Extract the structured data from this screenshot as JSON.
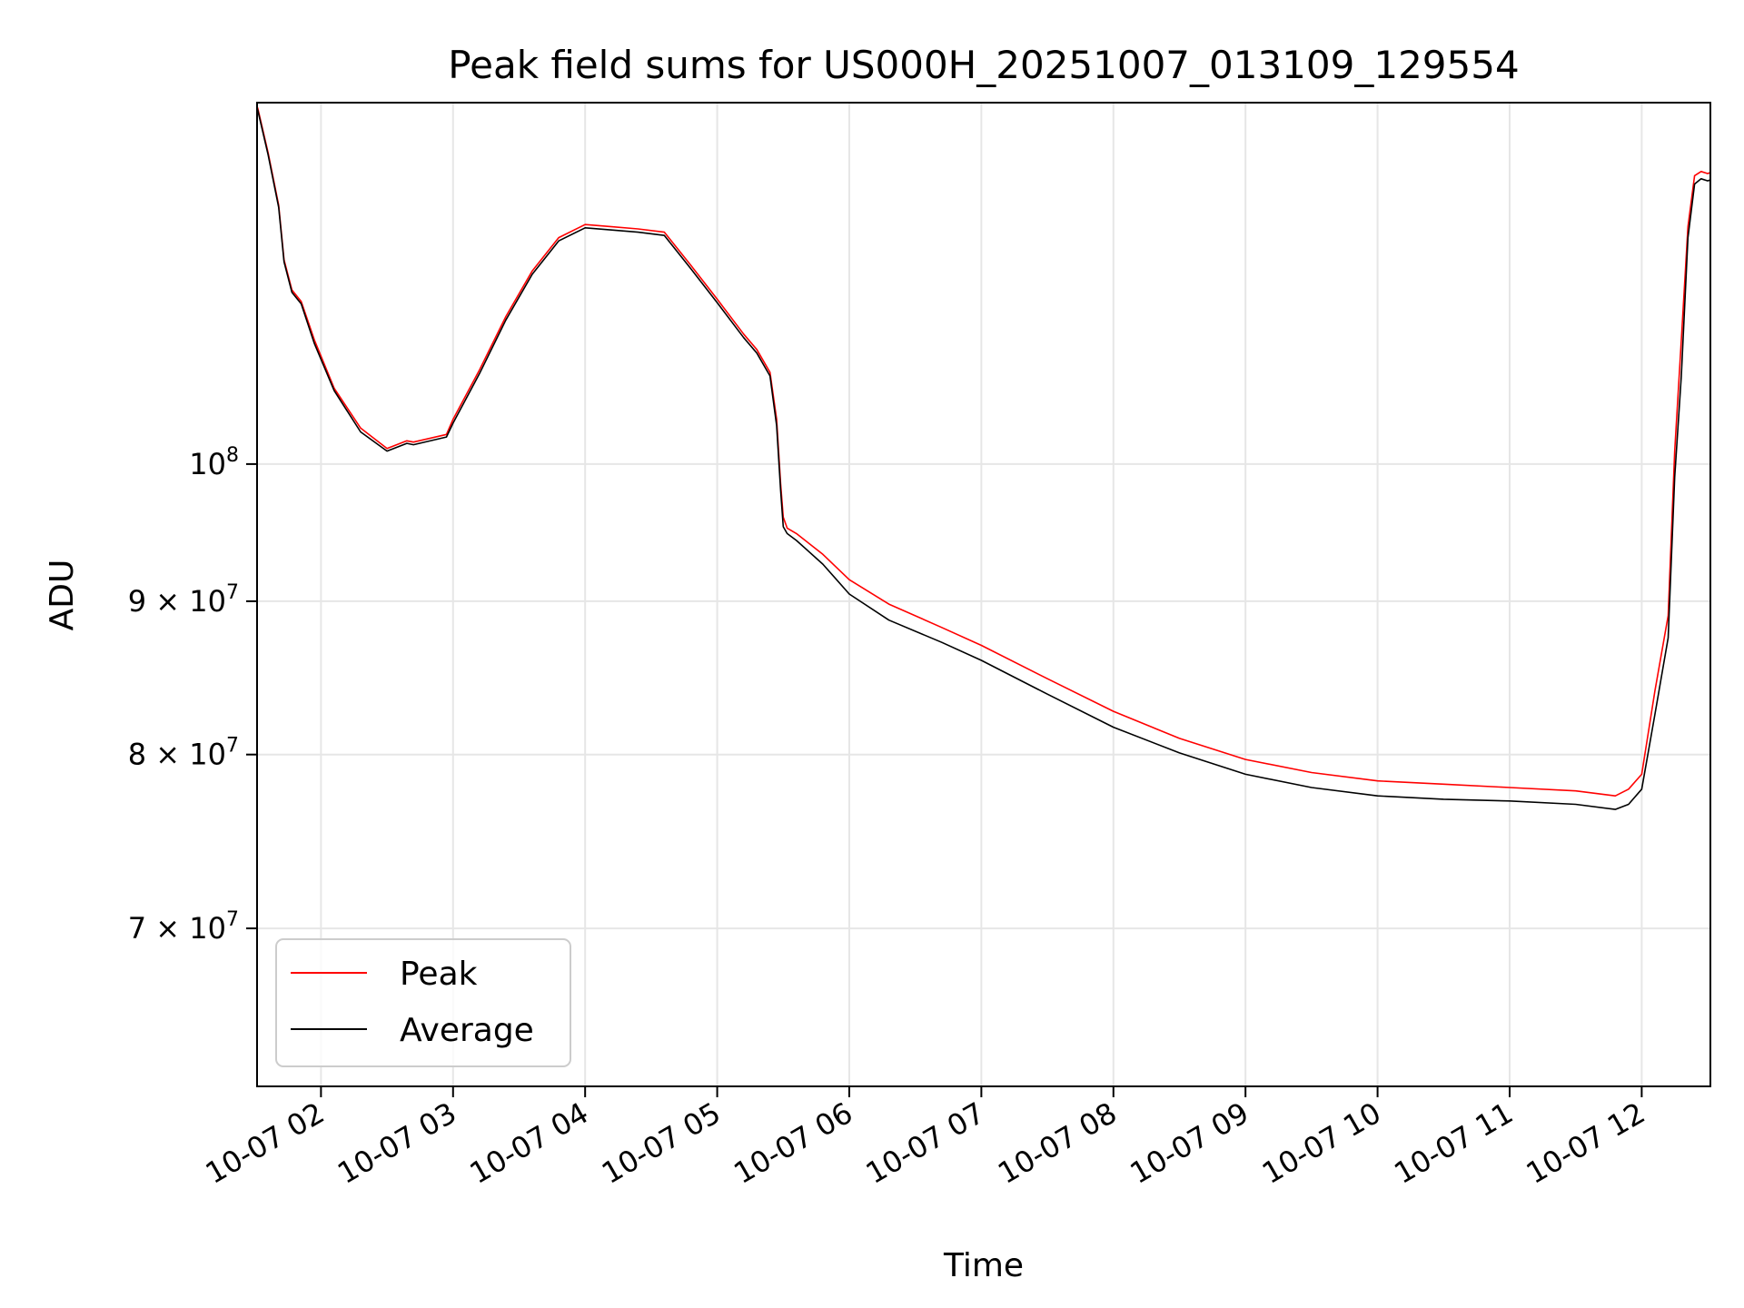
{
  "chart_data": {
    "type": "line",
    "title": "Peak field sums for US000H_20251007_013109_129554",
    "xlabel": "Time",
    "ylabel": "ADU",
    "x_unit": "hours since 10-07 00:00",
    "xlim": [
      1.516,
      12.52
    ],
    "ylim": [
      62000000,
      132000000
    ],
    "y_scale": "log",
    "grid": true,
    "legend_position": "lower-left",
    "colors": {
      "Peak": "#ff0000",
      "Average": "#000000"
    },
    "x_ticks": [
      {
        "value": 2,
        "label": "10-07 02"
      },
      {
        "value": 3,
        "label": "10-07 03"
      },
      {
        "value": 4,
        "label": "10-07 04"
      },
      {
        "value": 5,
        "label": "10-07 05"
      },
      {
        "value": 6,
        "label": "10-07 06"
      },
      {
        "value": 7,
        "label": "10-07 07"
      },
      {
        "value": 8,
        "label": "10-07 08"
      },
      {
        "value": 9,
        "label": "10-07 09"
      },
      {
        "value": 10,
        "label": "10-07 10"
      },
      {
        "value": 11,
        "label": "10-07 11"
      },
      {
        "value": 12,
        "label": "10-07 12"
      }
    ],
    "y_ticks": [
      {
        "value": 70000000,
        "mantissa": "7",
        "label": "7 × 10^7"
      },
      {
        "value": 80000000,
        "mantissa": "8",
        "label": "8 × 10^7"
      },
      {
        "value": 90000000,
        "mantissa": "9",
        "label": "9 × 10^7"
      },
      {
        "value": 100000000,
        "mantissa": "",
        "label": "10^8"
      }
    ],
    "series": [
      {
        "name": "Peak",
        "x": [
          1.52,
          1.6,
          1.68,
          1.72,
          1.78,
          1.85,
          1.95,
          2.1,
          2.3,
          2.5,
          2.65,
          2.7,
          2.95,
          3.0,
          3.2,
          3.4,
          3.6,
          3.8,
          4.0,
          4.2,
          4.4,
          4.6,
          4.8,
          5.0,
          5.2,
          5.3,
          5.4,
          5.45,
          5.48,
          5.5,
          5.53,
          5.6,
          5.8,
          6.0,
          6.3,
          6.7,
          7.0,
          7.5,
          8.0,
          8.5,
          9.0,
          9.5,
          10.0,
          10.5,
          11.0,
          11.5,
          11.8,
          11.9,
          12.0,
          12.1,
          12.2,
          12.25,
          12.3,
          12.35,
          12.4,
          12.45,
          12.5,
          12.52
        ],
        "y": [
          131500000,
          127000000,
          122000000,
          117000000,
          114300000,
          113300000,
          110000000,
          106000000,
          102800000,
          101200000,
          101800000,
          101700000,
          102300000,
          103500000,
          107500000,
          112000000,
          116000000,
          119000000,
          120200000,
          120000000,
          119800000,
          119500000,
          116500000,
          113500000,
          110500000,
          109200000,
          107300000,
          103500000,
          98500000,
          96000000,
          95200000,
          94800000,
          93300000,
          91500000,
          89800000,
          88200000,
          87000000,
          84800000,
          82700000,
          81000000,
          79700000,
          78900000,
          78400000,
          78200000,
          78000000,
          77800000,
          77500000,
          77900000,
          78800000,
          84000000,
          89000000,
          101000000,
          110000000,
          120000000,
          124800000,
          125200000,
          125000000,
          125100000
        ]
      },
      {
        "name": "Average",
        "x": [
          1.52,
          1.6,
          1.68,
          1.72,
          1.78,
          1.85,
          1.95,
          2.1,
          2.3,
          2.5,
          2.65,
          2.7,
          2.95,
          3.0,
          3.2,
          3.4,
          3.6,
          3.8,
          4.0,
          4.2,
          4.4,
          4.6,
          4.8,
          5.0,
          5.2,
          5.3,
          5.4,
          5.45,
          5.48,
          5.5,
          5.53,
          5.6,
          5.8,
          6.0,
          6.3,
          6.7,
          7.0,
          7.5,
          8.0,
          8.5,
          9.0,
          9.5,
          10.0,
          10.5,
          11.0,
          11.5,
          11.8,
          11.9,
          12.0,
          12.1,
          12.2,
          12.25,
          12.3,
          12.35,
          12.4,
          12.45,
          12.5,
          12.52
        ],
        "y": [
          131300000,
          126800000,
          121800000,
          116800000,
          114100000,
          113100000,
          109700000,
          105800000,
          102500000,
          101000000,
          101600000,
          101500000,
          102100000,
          103200000,
          107200000,
          111700000,
          115700000,
          118700000,
          119900000,
          119700000,
          119500000,
          119200000,
          116200000,
          113200000,
          110200000,
          108900000,
          107000000,
          103000000,
          98000000,
          95300000,
          94800000,
          94300000,
          92600000,
          90500000,
          88700000,
          87200000,
          86000000,
          83800000,
          81700000,
          80100000,
          78800000,
          78000000,
          77500000,
          77300000,
          77200000,
          77000000,
          76700000,
          77000000,
          77900000,
          82500000,
          87500000,
          99000000,
          107000000,
          119000000,
          124000000,
          124500000,
          124300000,
          124400000
        ]
      }
    ]
  }
}
